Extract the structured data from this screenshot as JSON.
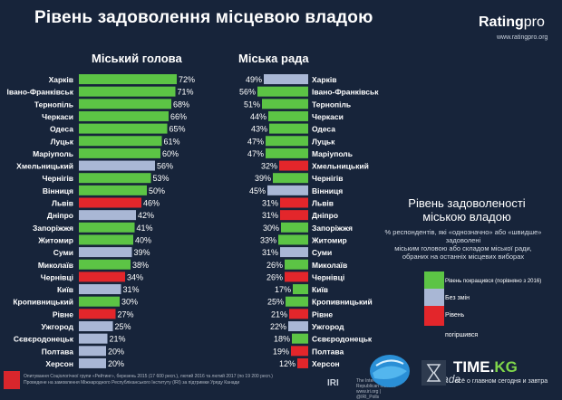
{
  "title": "Рівень задоволення місцевою владою",
  "logo": {
    "brand": "Rating",
    "brand_suffix": "pro",
    "url": "www.ratingpro.org"
  },
  "column_titles": {
    "mayor": "Міський голова",
    "council": "Міська рада"
  },
  "colors": {
    "green": "#5cc445",
    "gray": "#a9b7d5",
    "red": "#e3262b",
    "background": "#17243a"
  },
  "legend": {
    "title_line1": "Рівень задоволеності",
    "title_line2": "міською владою",
    "note_line1": "% респондентів, які «однозначно» або «швидше» задоволені",
    "note_line2": "міським головою або складом міської ради,",
    "note_line3": "обраних на останніх місцевих виборах",
    "items": [
      {
        "label": "Рівень покращився (порівняно з 2016)",
        "color": "green"
      },
      {
        "label": "Без змін",
        "color": "gray"
      },
      {
        "label": "Рівень погіршився",
        "color": "red"
      }
    ]
  },
  "footer": {
    "line1": "Опитування Соціологічної групи «Рейтинг», березень 2015 (17 600 респ.), лютий 2016 та лютий 2017 (по 19 200 респ.)",
    "line2": "Проведене на замовлення Міжнародного Республіканського Інституту (IRI) за підтримки Уряду Канади",
    "line3": "The International Republican Institute www.iri.org | @IRI_Polls",
    "line4": "Canada",
    "iri": "IRI"
  },
  "watermark": {
    "brand": "TIME.",
    "brand_suffix": "KG",
    "tagline": "всё о главном сегодня и завтра"
  },
  "chart_data": [
    {
      "type": "bar",
      "title": "Міський голова",
      "categories": [
        "Харків",
        "Івано-Франківськ",
        "Тернопіль",
        "Черкаси",
        "Одеса",
        "Луцьк",
        "Маріуполь",
        "Хмельницький",
        "Чернігів",
        "Вінниця",
        "Львів",
        "Дніпро",
        "Запоріжжя",
        "Житомир",
        "Суми",
        "Миколаїв",
        "Чернівці",
        "Київ",
        "Кропивницький",
        "Рівне",
        "Ужгород",
        "Сєвєродонецьк",
        "Полтава",
        "Херсон"
      ],
      "values": [
        72,
        71,
        68,
        66,
        65,
        61,
        60,
        56,
        53,
        50,
        46,
        42,
        41,
        40,
        39,
        38,
        34,
        31,
        30,
        27,
        25,
        21,
        20,
        20
      ],
      "labels": [
        "72%",
        "71%",
        "68%",
        "66%",
        "65%",
        "61%",
        "60%",
        "56%",
        "53%",
        "50%",
        "46%",
        "42%",
        "41%",
        "40%",
        "39%",
        "38%",
        "34%",
        "31%",
        "30%",
        "27%",
        "25%",
        "21%",
        "20%",
        "20%"
      ],
      "bar_colors": [
        "green",
        "green",
        "green",
        "green",
        "green",
        "green",
        "green",
        "gray",
        "green",
        "green",
        "red",
        "gray",
        "green",
        "green",
        "gray",
        "green",
        "red",
        "gray",
        "green",
        "red",
        "gray",
        "gray",
        "gray",
        "gray"
      ],
      "xlim": [
        0,
        80
      ]
    },
    {
      "type": "bar",
      "title": "Міська рада",
      "categories": [
        "Харків",
        "Івано-Франківськ",
        "Тернопіль",
        "Черкаси",
        "Одеса",
        "Луцьк",
        "Маріуполь",
        "Хмельницький",
        "Чернігів",
        "Вінниця",
        "Львів",
        "Дніпро",
        "Запоріжжя",
        "Житомир",
        "Суми",
        "Миколаїв",
        "Чернівці",
        "Київ",
        "Кропивницький",
        "Рівне",
        "Ужгород",
        "Сєвєродонецьк",
        "Полтава",
        "Херсон"
      ],
      "values": [
        49,
        56,
        51,
        44,
        43,
        47,
        47,
        32,
        39,
        45,
        31,
        31,
        30,
        33,
        31,
        26,
        26,
        17,
        25,
        21,
        22,
        18,
        19,
        12
      ],
      "labels": [
        "49%",
        "56%",
        "51%",
        "44%",
        "43%",
        "47%",
        "47%",
        "32%",
        "39%",
        "45%",
        "31%",
        "31%",
        "30%",
        "33%",
        "31%",
        "26%",
        "26%",
        "17%",
        "25%",
        "21%",
        "22%",
        "18%",
        "19%",
        "12%"
      ],
      "bar_colors": [
        "gray",
        "green",
        "green",
        "green",
        "green",
        "green",
        "green",
        "red",
        "green",
        "gray",
        "red",
        "red",
        "green",
        "green",
        "gray",
        "green",
        "red",
        "green",
        "green",
        "red",
        "gray",
        "green",
        "red",
        "red"
      ],
      "xlim": [
        0,
        80
      ]
    }
  ]
}
